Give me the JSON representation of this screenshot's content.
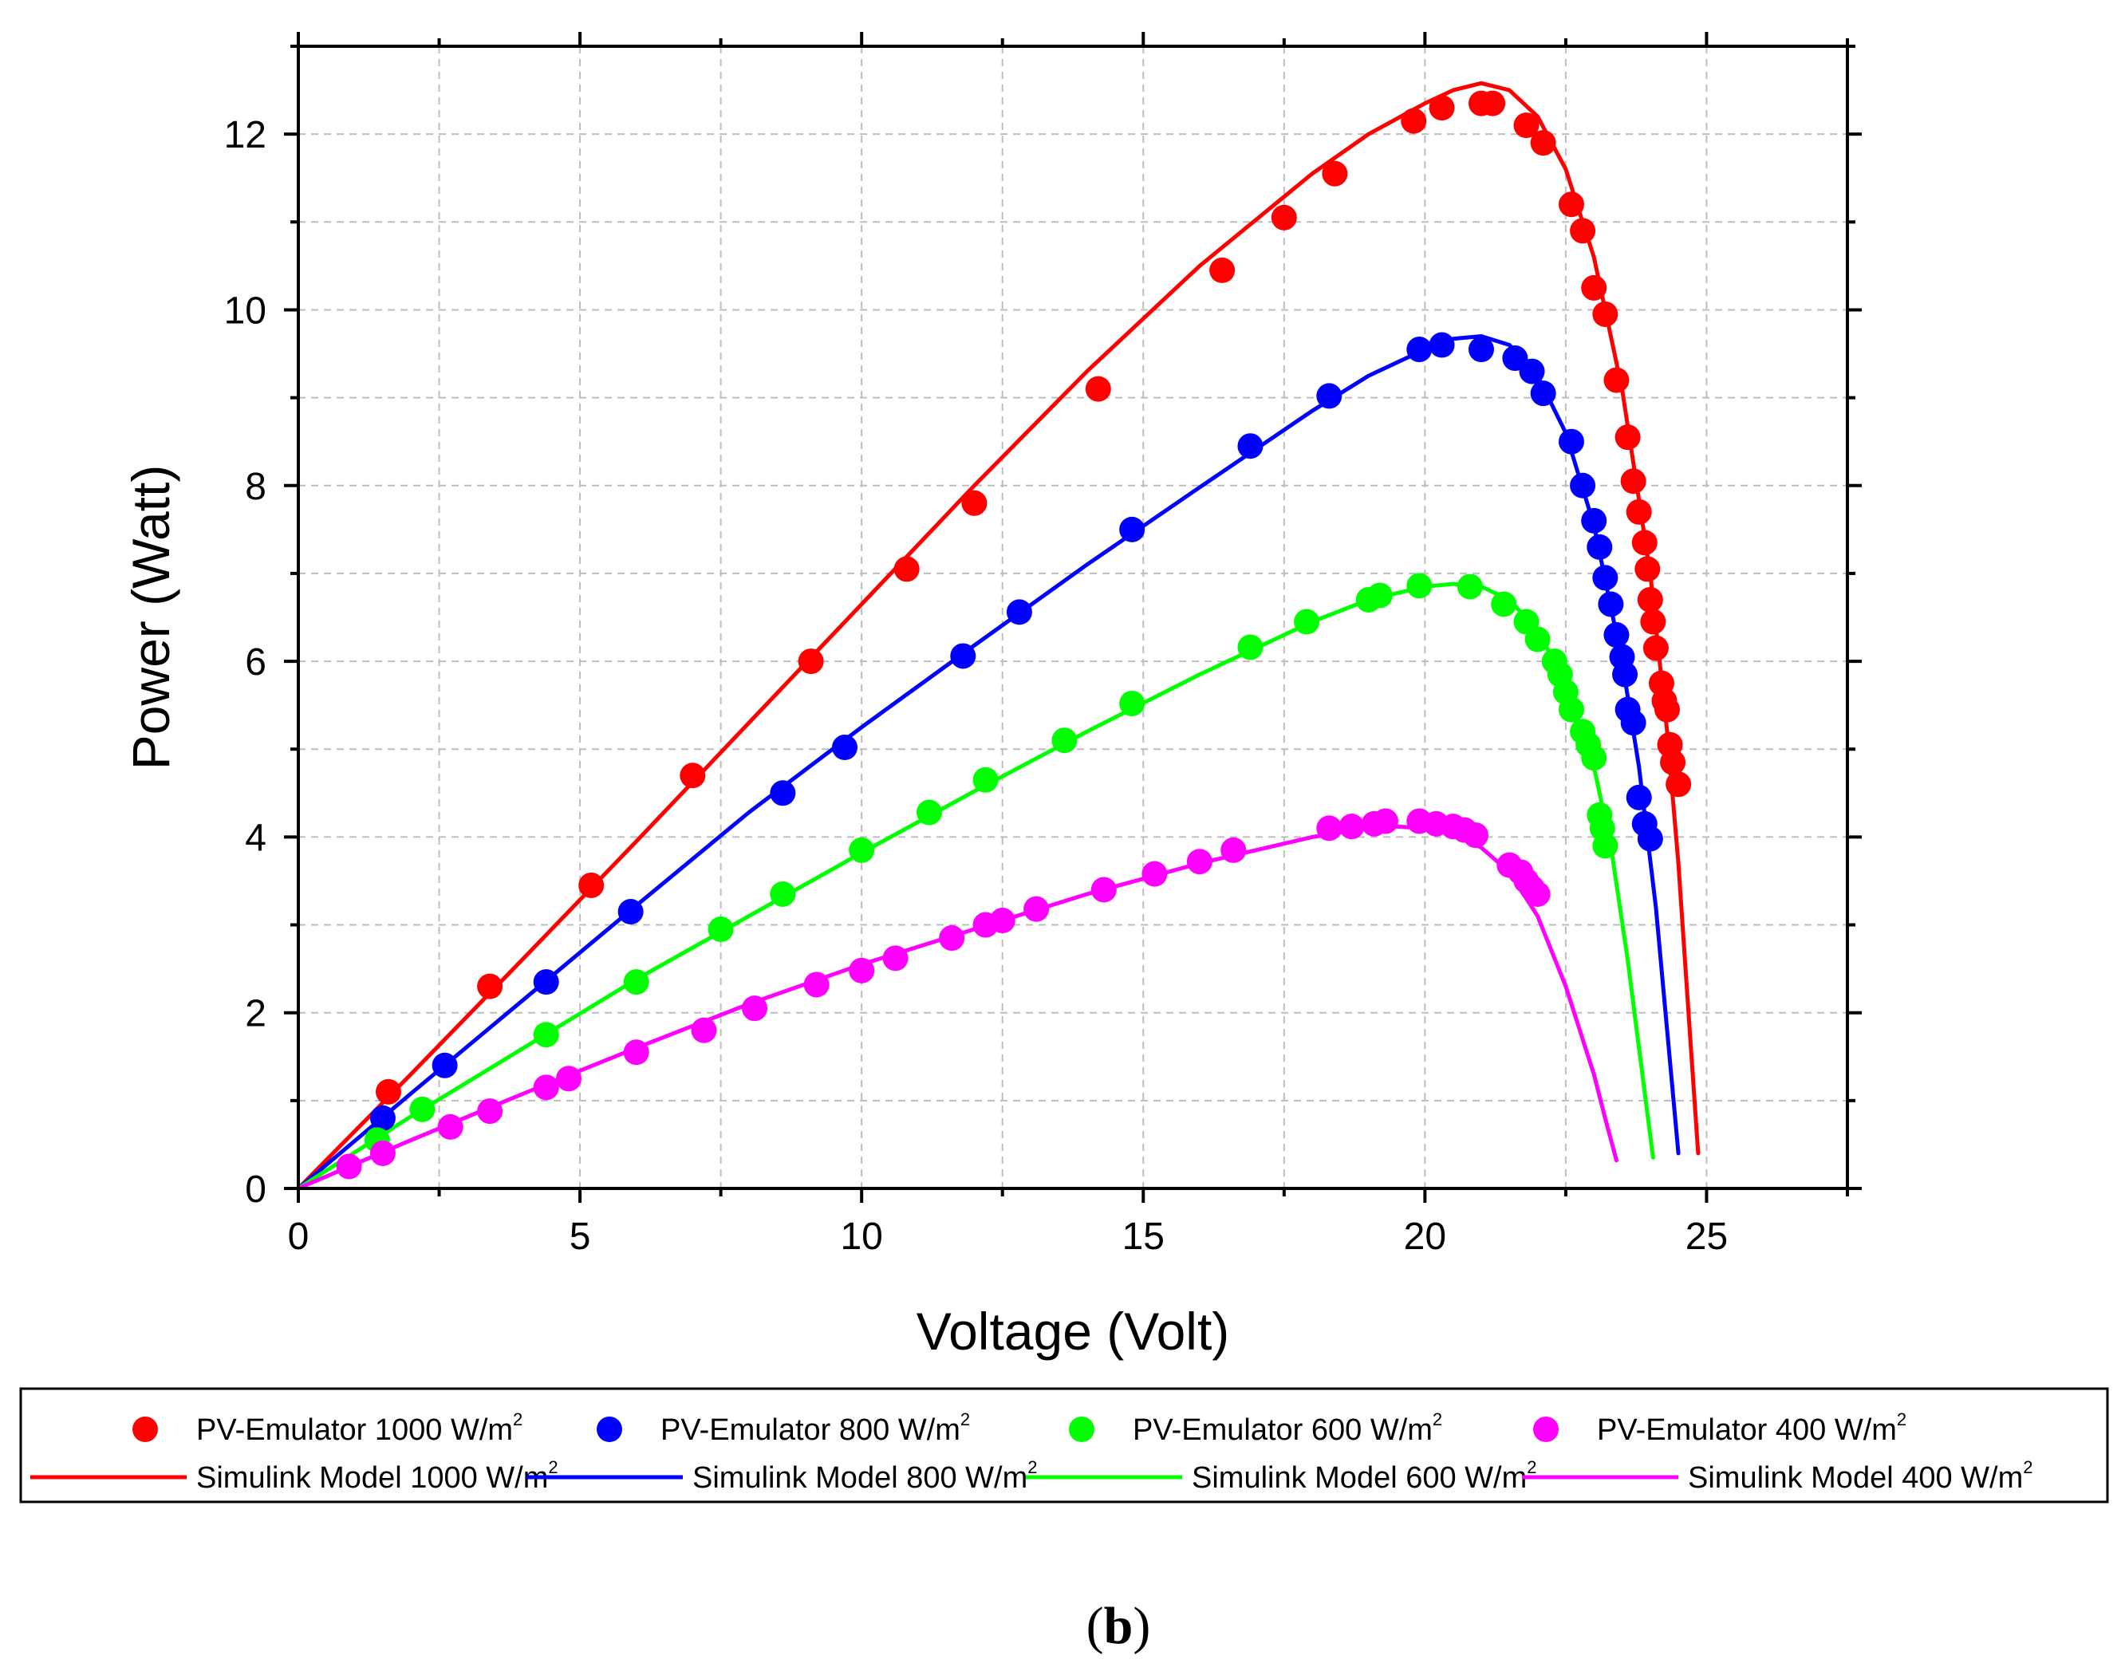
{
  "chart_data": {
    "type": "line",
    "xlabel": "Voltage (Volt)",
    "ylabel": "Power (Watt)",
    "xlim": [
      0,
      27.5
    ],
    "ylim": [
      0,
      13
    ],
    "xticks": [
      0,
      5,
      10,
      15,
      20,
      25
    ],
    "yticks": [
      0,
      2,
      4,
      6,
      8,
      10,
      12
    ],
    "grid": true,
    "legend_position": "bottom",
    "caption": {
      "open": "(",
      "letter": "b",
      "close": ")"
    },
    "series": [
      {
        "name": "PV-Emulator 1000 W/m",
        "sup": "2",
        "kind": "scatter",
        "color": "#ff0000",
        "points": [
          [
            1.6,
            1.1
          ],
          [
            3.4,
            2.3
          ],
          [
            5.2,
            3.45
          ],
          [
            7.0,
            4.7
          ],
          [
            9.1,
            6.0
          ],
          [
            10.8,
            7.05
          ],
          [
            12.0,
            7.8
          ],
          [
            14.2,
            9.1
          ],
          [
            16.4,
            10.45
          ],
          [
            17.5,
            11.05
          ],
          [
            18.4,
            11.55
          ],
          [
            19.8,
            12.15
          ],
          [
            20.3,
            12.3
          ],
          [
            21.0,
            12.35
          ],
          [
            21.2,
            12.35
          ],
          [
            21.8,
            12.1
          ],
          [
            22.1,
            11.9
          ],
          [
            22.6,
            11.2
          ],
          [
            22.8,
            10.9
          ],
          [
            23.0,
            10.25
          ],
          [
            23.2,
            9.95
          ],
          [
            23.4,
            9.2
          ],
          [
            23.6,
            8.55
          ],
          [
            23.7,
            8.05
          ],
          [
            23.8,
            7.7
          ],
          [
            23.9,
            7.35
          ],
          [
            23.95,
            7.05
          ],
          [
            24.0,
            6.7
          ],
          [
            24.05,
            6.45
          ],
          [
            24.1,
            6.15
          ],
          [
            24.2,
            5.75
          ],
          [
            24.25,
            5.55
          ],
          [
            24.3,
            5.45
          ],
          [
            24.35,
            5.05
          ],
          [
            24.4,
            4.85
          ],
          [
            24.5,
            4.6
          ]
        ]
      },
      {
        "name": "PV-Emulator  800 W/m",
        "sup": "2",
        "kind": "scatter",
        "color": "#0000ff",
        "points": [
          [
            1.5,
            0.8
          ],
          [
            2.6,
            1.4
          ],
          [
            4.4,
            2.35
          ],
          [
            5.9,
            3.15
          ],
          [
            8.6,
            4.5
          ],
          [
            9.7,
            5.02
          ],
          [
            11.8,
            6.06
          ],
          [
            12.8,
            6.56
          ],
          [
            14.8,
            7.5
          ],
          [
            16.9,
            8.45
          ],
          [
            18.3,
            9.02
          ],
          [
            19.9,
            9.55
          ],
          [
            20.3,
            9.6
          ],
          [
            21.0,
            9.55
          ],
          [
            21.6,
            9.45
          ],
          [
            21.9,
            9.3
          ],
          [
            22.1,
            9.05
          ],
          [
            22.6,
            8.5
          ],
          [
            22.8,
            8.0
          ],
          [
            23.0,
            7.6
          ],
          [
            23.1,
            7.3
          ],
          [
            23.2,
            6.95
          ],
          [
            23.3,
            6.65
          ],
          [
            23.4,
            6.3
          ],
          [
            23.5,
            6.05
          ],
          [
            23.55,
            5.85
          ],
          [
            23.6,
            5.45
          ],
          [
            23.7,
            5.3
          ],
          [
            23.8,
            4.45
          ],
          [
            23.9,
            4.15
          ],
          [
            24.0,
            3.98
          ]
        ]
      },
      {
        "name": "PV-Emulator  600 W/m",
        "sup": "2",
        "kind": "scatter",
        "color": "#00ff00",
        "points": [
          [
            1.4,
            0.55
          ],
          [
            2.2,
            0.9
          ],
          [
            4.4,
            1.75
          ],
          [
            6.0,
            2.35
          ],
          [
            7.5,
            2.95
          ],
          [
            8.6,
            3.35
          ],
          [
            10.0,
            3.85
          ],
          [
            11.2,
            4.28
          ],
          [
            12.2,
            4.65
          ],
          [
            13.6,
            5.1
          ],
          [
            14.8,
            5.52
          ],
          [
            16.9,
            6.16
          ],
          [
            17.9,
            6.45
          ],
          [
            19.0,
            6.7
          ],
          [
            19.2,
            6.75
          ],
          [
            19.9,
            6.86
          ],
          [
            20.8,
            6.85
          ],
          [
            21.4,
            6.65
          ],
          [
            21.8,
            6.45
          ],
          [
            22.0,
            6.25
          ],
          [
            22.3,
            6.0
          ],
          [
            22.4,
            5.85
          ],
          [
            22.5,
            5.65
          ],
          [
            22.6,
            5.45
          ],
          [
            22.8,
            5.2
          ],
          [
            22.9,
            5.05
          ],
          [
            23.0,
            4.9
          ],
          [
            23.1,
            4.25
          ],
          [
            23.15,
            4.1
          ],
          [
            23.2,
            3.9
          ]
        ]
      },
      {
        "name": "PV-Emulator  400 W/m",
        "sup": "2",
        "kind": "scatter",
        "color": "#ff00ff",
        "points": [
          [
            0.9,
            0.25
          ],
          [
            1.5,
            0.4
          ],
          [
            2.7,
            0.7
          ],
          [
            3.4,
            0.88
          ],
          [
            4.4,
            1.15
          ],
          [
            4.8,
            1.25
          ],
          [
            6.0,
            1.55
          ],
          [
            7.2,
            1.8
          ],
          [
            8.1,
            2.05
          ],
          [
            9.2,
            2.32
          ],
          [
            10.0,
            2.48
          ],
          [
            10.6,
            2.62
          ],
          [
            11.6,
            2.85
          ],
          [
            12.2,
            3.0
          ],
          [
            12.5,
            3.05
          ],
          [
            13.1,
            3.18
          ],
          [
            14.3,
            3.4
          ],
          [
            15.2,
            3.58
          ],
          [
            16.0,
            3.72
          ],
          [
            16.6,
            3.85
          ],
          [
            18.3,
            4.1
          ],
          [
            18.7,
            4.12
          ],
          [
            19.1,
            4.15
          ],
          [
            19.3,
            4.18
          ],
          [
            19.9,
            4.18
          ],
          [
            20.2,
            4.15
          ],
          [
            20.5,
            4.12
          ],
          [
            20.7,
            4.08
          ],
          [
            20.9,
            4.02
          ],
          [
            21.5,
            3.68
          ],
          [
            21.7,
            3.6
          ],
          [
            21.8,
            3.5
          ],
          [
            21.9,
            3.42
          ],
          [
            22.0,
            3.35
          ]
        ]
      },
      {
        "name": "Simulink Model 1000 W/m",
        "sup": "2",
        "kind": "line",
        "color": "#ff0000",
        "points": [
          [
            0,
            0
          ],
          [
            2,
            1.3
          ],
          [
            4,
            2.62
          ],
          [
            6,
            3.95
          ],
          [
            8,
            5.3
          ],
          [
            10,
            6.65
          ],
          [
            12,
            8.0
          ],
          [
            14,
            9.3
          ],
          [
            16,
            10.5
          ],
          [
            18,
            11.55
          ],
          [
            19,
            12.0
          ],
          [
            20,
            12.35
          ],
          [
            20.5,
            12.5
          ],
          [
            21,
            12.58
          ],
          [
            21.5,
            12.5
          ],
          [
            22,
            12.2
          ],
          [
            22.5,
            11.6
          ],
          [
            23,
            10.6
          ],
          [
            23.5,
            9.1
          ],
          [
            24,
            7.0
          ],
          [
            24.3,
            5.2
          ],
          [
            24.5,
            3.7
          ],
          [
            24.7,
            1.8
          ],
          [
            24.85,
            0.4
          ]
        ]
      },
      {
        "name": "Simulink Model  800 W/m",
        "sup": "2",
        "kind": "line",
        "color": "#0000ff",
        "points": [
          [
            0,
            0
          ],
          [
            2,
            1.08
          ],
          [
            4,
            2.15
          ],
          [
            6,
            3.22
          ],
          [
            8,
            4.28
          ],
          [
            10,
            5.25
          ],
          [
            12,
            6.18
          ],
          [
            14,
            7.1
          ],
          [
            16,
            7.98
          ],
          [
            18,
            8.85
          ],
          [
            19,
            9.25
          ],
          [
            20,
            9.55
          ],
          [
            20.5,
            9.67
          ],
          [
            21,
            9.7
          ],
          [
            21.5,
            9.6
          ],
          [
            22,
            9.25
          ],
          [
            22.5,
            8.6
          ],
          [
            23,
            7.55
          ],
          [
            23.5,
            6.0
          ],
          [
            23.8,
            4.8
          ],
          [
            24.1,
            3.2
          ],
          [
            24.3,
            1.8
          ],
          [
            24.5,
            0.4
          ]
        ]
      },
      {
        "name": "Simulink Model  600 W/m",
        "sup": "2",
        "kind": "line",
        "color": "#00ff00",
        "points": [
          [
            0,
            0
          ],
          [
            2,
            0.82
          ],
          [
            4,
            1.6
          ],
          [
            6,
            2.38
          ],
          [
            8,
            3.1
          ],
          [
            10,
            3.82
          ],
          [
            12,
            4.52
          ],
          [
            14,
            5.2
          ],
          [
            16,
            5.85
          ],
          [
            18,
            6.45
          ],
          [
            19,
            6.7
          ],
          [
            20,
            6.85
          ],
          [
            20.5,
            6.88
          ],
          [
            21,
            6.85
          ],
          [
            21.5,
            6.7
          ],
          [
            22,
            6.35
          ],
          [
            22.5,
            5.75
          ],
          [
            23,
            4.8
          ],
          [
            23.3,
            3.9
          ],
          [
            23.6,
            2.6
          ],
          [
            23.8,
            1.6
          ],
          [
            24.05,
            0.35
          ]
        ]
      },
      {
        "name": "Simulink Model  400 W/m",
        "sup": "2",
        "kind": "line",
        "color": "#ff00ff",
        "points": [
          [
            0,
            0
          ],
          [
            2,
            0.55
          ],
          [
            4,
            1.08
          ],
          [
            6,
            1.6
          ],
          [
            8,
            2.1
          ],
          [
            10,
            2.55
          ],
          [
            12,
            2.95
          ],
          [
            14,
            3.35
          ],
          [
            16,
            3.7
          ],
          [
            18,
            4.0
          ],
          [
            19,
            4.1
          ],
          [
            19.5,
            4.12
          ],
          [
            20,
            4.1
          ],
          [
            20.5,
            4.03
          ],
          [
            21,
            3.88
          ],
          [
            21.5,
            3.6
          ],
          [
            22,
            3.1
          ],
          [
            22.5,
            2.3
          ],
          [
            23,
            1.3
          ],
          [
            23.2,
            0.8
          ],
          [
            23.4,
            0.32
          ]
        ]
      }
    ]
  }
}
